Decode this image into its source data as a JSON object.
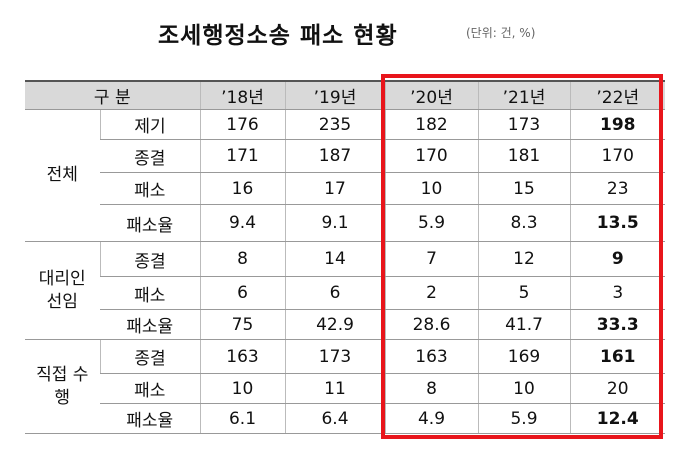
{
  "title": "조세행정소송 패소 현황",
  "unit": "(단위: 건, %)",
  "table": {
    "header": [
      "구 분",
      "’18년",
      "’19년",
      "’20년",
      "’21년",
      "’22년"
    ],
    "groups": [
      {
        "name": "전체",
        "rows": [
          {
            "label": "제기",
            "values": [
              176,
              235,
              182,
              173,
              198
            ]
          },
          {
            "label": "종결",
            "values": [
              171,
              187,
              170,
              181,
              170
            ]
          },
          {
            "label": "패소",
            "values": [
              16,
              17,
              10,
              15,
              23
            ]
          },
          {
            "label": "패소율",
            "values": [
              9.4,
              9.1,
              5.9,
              8.3,
              13.5
            ]
          }
        ]
      },
      {
        "name": "대리인 선임",
        "rows": [
          {
            "label": "종결",
            "values": [
              8,
              14,
              7,
              12,
              9
            ]
          },
          {
            "label": "패소",
            "values": [
              6,
              6,
              2,
              5,
              3
            ]
          },
          {
            "label": "패소율",
            "values": [
              75,
              42.9,
              28.6,
              41.7,
              33.3
            ]
          }
        ]
      },
      {
        "name": "직접 수행",
        "rows": [
          {
            "label": "종결",
            "values": [
              163,
              173,
              163,
              169,
              161
            ]
          },
          {
            "label": "패소",
            "values": [
              10,
              11,
              8,
              10,
              20
            ]
          },
          {
            "label": "패소율",
            "values": [
              6.1,
              6.4,
              4.9,
              5.9,
              12.4
            ]
          }
        ]
      }
    ]
  }
}
